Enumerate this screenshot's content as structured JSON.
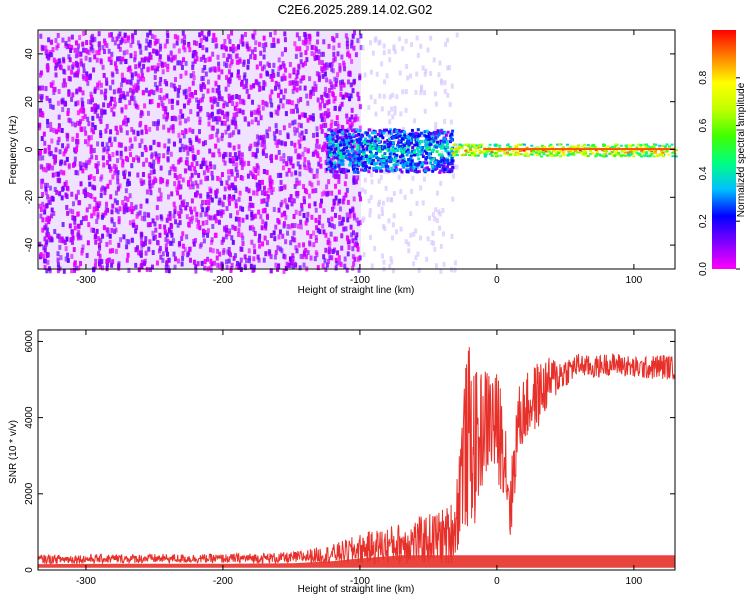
{
  "title": "C2E6.2025.289.14.02.G02",
  "chart_data": [
    {
      "type": "heatmap",
      "title": "C2E6.2025.289.14.02.G02",
      "xlabel": "Height of straight line (km)",
      "ylabel": "Frequency (Hz)",
      "xlim": [
        -335,
        130
      ],
      "ylim": [
        -50,
        50
      ],
      "x_ticks": [
        -300,
        -200,
        -100,
        0,
        100
      ],
      "y_ticks": [
        -40,
        -20,
        0,
        20,
        40
      ],
      "colorbar": {
        "label": "Normalized spectral amplitude",
        "range": [
          0.0,
          1.0
        ],
        "ticks": [
          0.0,
          0.2,
          0.4,
          0.6,
          0.8
        ],
        "colors": [
          "#ff00ff",
          "#7f00ff",
          "#0000ff",
          "#00c0ff",
          "#00ff80",
          "#40ff00",
          "#c0ff00",
          "#ffff00",
          "#ff8000",
          "#ff0000"
        ]
      },
      "regions": [
        {
          "x_range": [
            -335,
            -100
          ],
          "description_value": "noise",
          "amplitude": [
            0.0,
            0.15
          ]
        },
        {
          "x_range": [
            -125,
            -35
          ],
          "center_hz": 0,
          "half_width_hz": 8,
          "amplitude": [
            0.2,
            0.5
          ]
        },
        {
          "x_range": [
            -35,
            130
          ],
          "center_hz": 0,
          "half_width_hz": 2,
          "amplitude": [
            0.8,
            1.0
          ]
        }
      ]
    },
    {
      "type": "line",
      "xlabel": "Height of straight line (km)",
      "ylabel": "SNR (10 * v/v)",
      "xlim": [
        -335,
        130
      ],
      "ylim": [
        0,
        6300
      ],
      "x_ticks": [
        -300,
        -200,
        -100,
        0,
        100
      ],
      "y_ticks": [
        0,
        2000,
        4000,
        6000
      ],
      "color": "#e8302a",
      "x": [
        -335,
        -300,
        -250,
        -200,
        -150,
        -120,
        -100,
        -80,
        -60,
        -45,
        -35,
        -30,
        -25,
        -20,
        -15,
        -10,
        -5,
        0,
        5,
        10,
        15,
        20,
        30,
        40,
        50,
        60,
        70,
        80,
        90,
        100,
        110,
        120,
        130
      ],
      "y": [
        280,
        290,
        300,
        300,
        320,
        420,
        550,
        650,
        750,
        850,
        900,
        1200,
        3000,
        3500,
        3200,
        3800,
        4000,
        3700,
        3400,
        1600,
        3800,
        4200,
        4600,
        5000,
        5200,
        5400,
        5300,
        5400,
        5400,
        5300,
        5300,
        5350,
        5300
      ],
      "spread": [
        120,
        120,
        120,
        120,
        150,
        250,
        400,
        500,
        600,
        700,
        800,
        900,
        2000,
        2500,
        2000,
        1500,
        1500,
        1500,
        1400,
        1000,
        1000,
        900,
        900,
        600,
        400,
        300,
        300,
        300,
        300,
        300,
        300,
        350,
        300
      ]
    }
  ]
}
